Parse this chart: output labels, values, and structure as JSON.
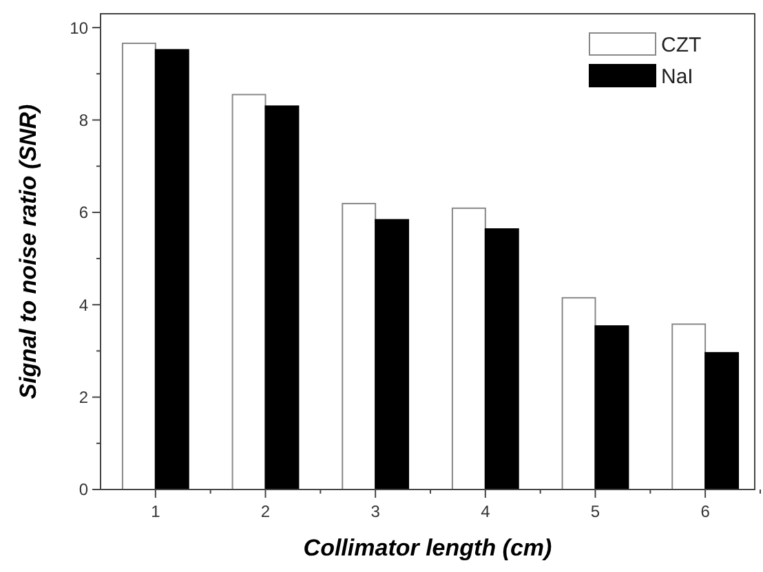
{
  "chart_data": {
    "type": "bar",
    "xlabel": "Collimator length (cm)",
    "ylabel": "Signal to noise ratio (SNR)",
    "categories": [
      "1",
      "2",
      "3",
      "4",
      "5",
      "6"
    ],
    "series": [
      {
        "name": "CZT",
        "color": "#ffffff",
        "values": [
          9.66,
          8.55,
          6.19,
          6.09,
          4.15,
          3.58
        ]
      },
      {
        "name": "NaI",
        "color": "#000000",
        "values": [
          9.52,
          8.3,
          5.84,
          5.64,
          3.54,
          2.96
        ]
      }
    ],
    "ylim": [
      0,
      10.3
    ],
    "yticks": [
      0,
      {
        "value": 1,
        "label": null
      },
      2,
      {
        "value": 3,
        "label": null
      },
      4,
      {
        "value": 5,
        "label": null
      },
      6,
      {
        "value": 7,
        "label": null
      },
      8,
      {
        "value": 9,
        "label": null
      },
      10
    ],
    "grid": false,
    "legend": "top right"
  }
}
